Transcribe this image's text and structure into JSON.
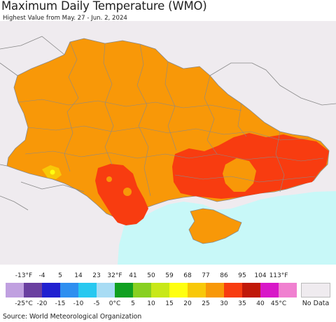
{
  "header": {
    "title": "Maximum Daily Temperature (WMO)",
    "subtitle": "Highest Value from May. 27 - Jun. 2, 2024"
  },
  "legend": {
    "fahrenheit_ticks": [
      "-13°F",
      "-4",
      "5",
      "14",
      "23",
      "32°F",
      "41",
      "50",
      "59",
      "68",
      "77",
      "86",
      "95",
      "104",
      "113°F"
    ],
    "celsius_ticks": [
      "-25°C",
      "-20",
      "-15",
      "-10",
      "-5",
      "0°C",
      "5",
      "10",
      "15",
      "20",
      "25",
      "30",
      "35",
      "40",
      "45°C"
    ],
    "colors": [
      "#c0a0e0",
      "#6a3fa0",
      "#2020d0",
      "#2f8ff0",
      "#28c8f0",
      "#a8dcf4",
      "#10a020",
      "#88d020",
      "#c8e818",
      "#ffff10",
      "#f8c808",
      "#f89808",
      "#f83c10",
      "#c01808",
      "#d818c8",
      "#f080d0"
    ],
    "no_data_label": "No Data"
  },
  "map": {
    "colors": {
      "no_data_land": "#efebef",
      "sea": "#c8f8f8",
      "temp_25_30": "#f89808",
      "temp_30_35": "#f83c10",
      "temp_20_25": "#f8c808",
      "temp_15_20": "#ffff10",
      "borders": "#808080"
    }
  },
  "footer": {
    "source": "Source: World Meteorological Organization"
  }
}
